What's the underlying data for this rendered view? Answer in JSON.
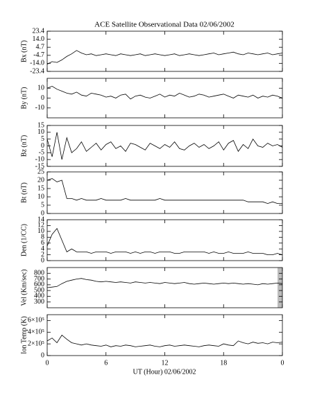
{
  "chart_data": [
    {
      "type": "line",
      "title": "ACE Satellite Observational Data   02/06/2002",
      "ylabel": "Bx (nT)",
      "color": "#000000",
      "x": [
        0,
        0.5,
        1,
        1.5,
        2,
        2.5,
        3,
        3.5,
        4,
        4.5,
        5,
        5.5,
        6,
        6.5,
        7,
        7.5,
        8,
        8.5,
        9,
        9.5,
        10,
        10.5,
        11,
        11.5,
        12,
        12.5,
        13,
        13.5,
        14,
        14.5,
        15,
        15.5,
        16,
        16.5,
        17,
        17.5,
        18,
        18.5,
        19,
        19.5,
        20,
        20.5,
        21,
        21.5,
        22,
        22.5,
        23,
        23.5,
        24
      ],
      "values": [
        -15,
        -12,
        -13,
        -10,
        -6,
        -3,
        1,
        -2,
        -4,
        -3,
        -5,
        -4,
        -3,
        -4,
        -5,
        -3,
        -4,
        -5,
        -4,
        -3,
        -5,
        -4,
        -3,
        -4,
        -5,
        -4,
        -3,
        -5,
        -4,
        -3,
        -4,
        -5,
        -4,
        -3,
        -2,
        -4,
        -3,
        -2,
        -1,
        -3,
        -4,
        -2,
        -3,
        -4,
        -3,
        -2,
        -4,
        -3,
        -2
      ],
      "xlim": [
        0,
        24
      ],
      "ylim": [
        -23.4,
        23.4
      ],
      "yticks": [
        23.4,
        {
          "value": 14,
          "label": "14.0"
        },
        4.7,
        -4.7,
        {
          "value": -14,
          "label": "-14.0"
        },
        -23.4
      ]
    },
    {
      "type": "line",
      "ylabel": "By (nT)",
      "color": "#000000",
      "x": [
        0,
        0.5,
        1,
        1.5,
        2,
        2.5,
        3,
        3.5,
        4,
        4.5,
        5,
        5.5,
        6,
        6.5,
        7,
        7.5,
        8,
        8.5,
        9,
        9.5,
        10,
        10.5,
        11,
        11.5,
        12,
        12.5,
        13,
        13.5,
        14,
        14.5,
        15,
        15.5,
        16,
        16.5,
        17,
        17.5,
        18,
        18.5,
        19,
        19.5,
        20,
        20.5,
        21,
        21.5,
        22,
        22.5,
        23,
        23.5,
        24
      ],
      "values": [
        10,
        12,
        9,
        7,
        5,
        4,
        6,
        3,
        2,
        5,
        4,
        3,
        1,
        2,
        0,
        3,
        4,
        -1,
        2,
        3,
        1,
        0,
        2,
        4,
        1,
        3,
        2,
        5,
        3,
        1,
        2,
        4,
        3,
        1,
        2,
        3,
        4,
        2,
        0,
        3,
        2,
        1,
        3,
        0,
        2,
        1,
        3,
        2,
        0
      ],
      "xlim": [
        0,
        24
      ],
      "ylim": [
        -20,
        20
      ],
      "yticks": [
        10,
        0,
        -10
      ]
    },
    {
      "type": "line",
      "ylabel": "Bz (nT)",
      "color": "#000000",
      "x": [
        0,
        0.5,
        1,
        1.5,
        2,
        2.5,
        3,
        3.5,
        4,
        4.5,
        5,
        5.5,
        6,
        6.5,
        7,
        7.5,
        8,
        8.5,
        9,
        9.5,
        10,
        10.5,
        11,
        11.5,
        12,
        12.5,
        13,
        13.5,
        14,
        14.5,
        15,
        15.5,
        16,
        16.5,
        17,
        17.5,
        18,
        18.5,
        19,
        19.5,
        20,
        20.5,
        21,
        21.5,
        22,
        22.5,
        23,
        23.5,
        24
      ],
      "values": [
        5,
        -8,
        10,
        -10,
        6,
        -5,
        -2,
        3,
        -4,
        -1,
        2,
        -3,
        1,
        3,
        -2,
        0,
        -4,
        2,
        1,
        -1,
        -3,
        2,
        0,
        -2,
        1,
        -1,
        3,
        -2,
        -3,
        0,
        2,
        -1,
        1,
        -2,
        0,
        3,
        -3,
        2,
        4,
        -4,
        1,
        -2,
        5,
        0,
        -1,
        2,
        0,
        1,
        -1
      ],
      "xlim": [
        0,
        24
      ],
      "ylim": [
        -15,
        15
      ],
      "yticks": [
        15,
        10,
        5,
        0,
        -5,
        -10,
        -15
      ]
    },
    {
      "type": "line",
      "ylabel": "Bt (nT)",
      "color": "#000000",
      "x": [
        0,
        0.5,
        1,
        1.5,
        2,
        2.5,
        3,
        3.5,
        4,
        4.5,
        5,
        5.5,
        6,
        6.5,
        7,
        7.5,
        8,
        8.5,
        9,
        9.5,
        10,
        10.5,
        11,
        11.5,
        12,
        12.5,
        13,
        13.5,
        14,
        14.5,
        15,
        15.5,
        16,
        16.5,
        17,
        17.5,
        18,
        18.5,
        19,
        19.5,
        20,
        20.5,
        21,
        21.5,
        22,
        22.5,
        23,
        23.5,
        24
      ],
      "values": [
        20,
        21,
        19,
        20,
        9,
        9,
        8,
        9,
        8,
        8,
        8,
        9,
        8,
        8,
        8,
        8,
        9,
        8,
        8,
        8,
        8,
        8,
        8,
        9,
        8,
        8,
        8,
        8,
        8,
        8,
        8,
        8,
        8,
        8,
        8,
        8,
        8,
        8,
        8,
        8,
        8,
        7,
        7,
        7,
        7,
        6,
        7,
        6,
        6
      ],
      "xlim": [
        0,
        24
      ],
      "ylim": [
        0,
        25
      ],
      "yticks": [
        25,
        20,
        15,
        10,
        5,
        0
      ]
    },
    {
      "type": "line",
      "ylabel": "Den (1/CC)",
      "color": "#000000",
      "x": [
        0,
        0.5,
        1,
        1.5,
        2,
        2.5,
        3,
        3.5,
        4,
        4.5,
        5,
        5.5,
        6,
        6.5,
        7,
        7.5,
        8,
        8.5,
        9,
        9.5,
        10,
        10.5,
        11,
        11.5,
        12,
        12.5,
        13,
        13.5,
        14,
        14.5,
        15,
        15.5,
        16,
        16.5,
        17,
        17.5,
        18,
        18.5,
        19,
        19.5,
        20,
        20.5,
        21,
        21.5,
        22,
        22.5,
        23,
        23.5,
        24
      ],
      "values": [
        5,
        9,
        11,
        7,
        3,
        4,
        3,
        3,
        3,
        2.5,
        3,
        3,
        3,
        2.5,
        3,
        3,
        3,
        2.5,
        3,
        2.5,
        3,
        3,
        2.5,
        3,
        3,
        3,
        2.5,
        2.5,
        3,
        3,
        3,
        3,
        3,
        2.5,
        3,
        2.5,
        2.5,
        3,
        2.5,
        2.5,
        2.5,
        3,
        2.5,
        2.5,
        2.5,
        2,
        2,
        2.5,
        2
      ],
      "xlim": [
        0,
        24
      ],
      "ylim": [
        0,
        14
      ],
      "yticks": [
        14,
        12,
        10,
        8,
        6,
        4,
        2,
        0
      ]
    },
    {
      "type": "line",
      "ylabel": "Vel (Km/sec)",
      "color": "#000000",
      "x": [
        0,
        0.5,
        1,
        1.5,
        2,
        2.5,
        3,
        3.5,
        4,
        4.5,
        5,
        5.5,
        6,
        6.5,
        7,
        7.5,
        8,
        8.5,
        9,
        9.5,
        10,
        10.5,
        11,
        11.5,
        12,
        12.5,
        13,
        13.5,
        14,
        14.5,
        15,
        15.5,
        16,
        16.5,
        17,
        17.5,
        18,
        18.5,
        19,
        19.5,
        20,
        20.5,
        21,
        21.5,
        22,
        22.5,
        23,
        23.5,
        24
      ],
      "values": [
        550,
        560,
        570,
        620,
        660,
        680,
        700,
        710,
        690,
        680,
        660,
        650,
        660,
        650,
        640,
        650,
        640,
        630,
        650,
        640,
        630,
        640,
        630,
        620,
        640,
        630,
        620,
        630,
        640,
        620,
        610,
        620,
        630,
        620,
        610,
        620,
        630,
        620,
        630,
        620,
        610,
        620,
        610,
        600,
        620,
        610,
        620,
        630,
        620
      ],
      "xlim": [
        0,
        24
      ],
      "ylim": [
        200,
        900
      ],
      "yticks": [
        800,
        700,
        600,
        500,
        400,
        300
      ]
    },
    {
      "type": "line",
      "ylabel": "Ion Temp (K)",
      "xlabel": "UT (Hour)  02/06/2002",
      "color": "#000000",
      "x": [
        0,
        0.5,
        1,
        1.5,
        2,
        2.5,
        3,
        3.5,
        4,
        4.5,
        5,
        5.5,
        6,
        6.5,
        7,
        7.5,
        8,
        8.5,
        9,
        9.5,
        10,
        10.5,
        11,
        11.5,
        12,
        12.5,
        13,
        13.5,
        14,
        14.5,
        15,
        15.5,
        16,
        16.5,
        17,
        17.5,
        18,
        18.5,
        19,
        19.5,
        20,
        20.5,
        21,
        21.5,
        22,
        22.5,
        23,
        23.5,
        24
      ],
      "values": [
        250000,
        300000,
        220000,
        350000,
        280000,
        220000,
        200000,
        180000,
        200000,
        180000,
        170000,
        160000,
        180000,
        150000,
        170000,
        160000,
        180000,
        170000,
        150000,
        160000,
        170000,
        180000,
        160000,
        150000,
        170000,
        180000,
        160000,
        170000,
        180000,
        170000,
        160000,
        150000,
        170000,
        180000,
        170000,
        160000,
        200000,
        180000,
        170000,
        250000,
        220000,
        200000,
        230000,
        210000,
        220000,
        200000,
        230000,
        220000,
        230000
      ],
      "xlim": [
        0,
        24
      ],
      "ylim": [
        0,
        700000
      ],
      "yticks": [
        {
          "value": 600000,
          "label": "6×10⁵"
        },
        {
          "value": 400000,
          "label": "4×10⁵"
        },
        {
          "value": 200000,
          "label": "2×10⁵"
        },
        0
      ],
      "xticks": [
        0,
        6,
        12,
        18,
        {
          "value": 24,
          "label": "0"
        }
      ]
    }
  ]
}
